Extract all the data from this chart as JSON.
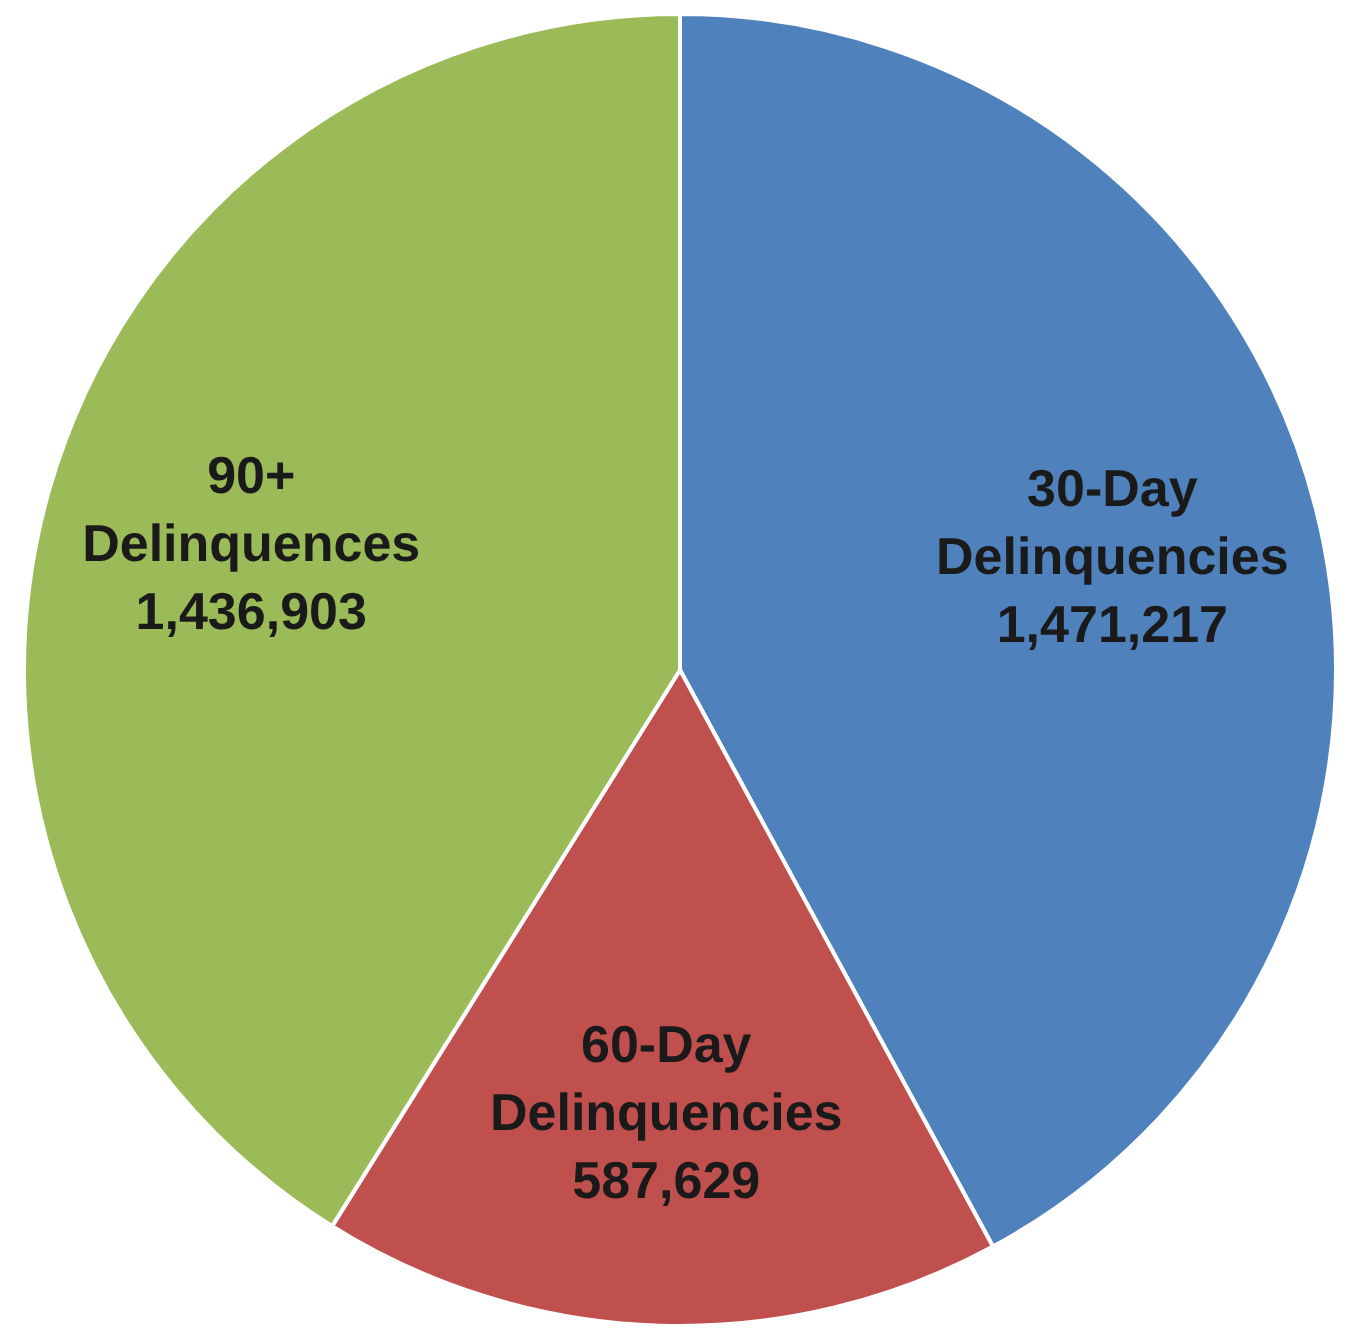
{
  "chart_data": {
    "type": "pie",
    "categories": [
      "30-Day Delinquencies",
      "60-Day Delinquencies",
      "90+ Delinquences"
    ],
    "values": [
      1471217,
      587629,
      1436903
    ],
    "value_labels": [
      "1,471,217",
      "587,629",
      "1,436,903"
    ],
    "colors": [
      "#4f81bd",
      "#c0504d",
      "#9bbb59"
    ]
  }
}
